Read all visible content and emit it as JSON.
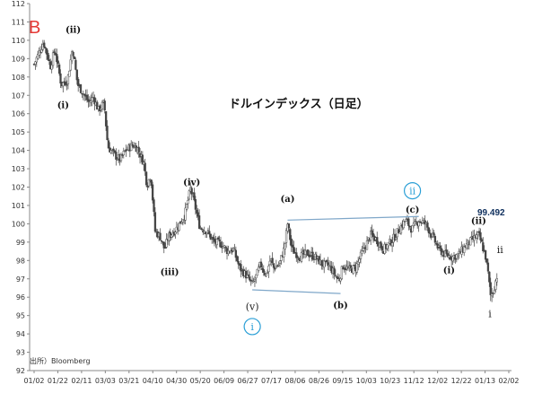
{
  "chart_data": {
    "type": "candlestick",
    "title": "ドルインデックス（日足）",
    "source": "出所）Bloomberg",
    "corner_mark": "B",
    "peak_label": "99.492",
    "ylim": [
      92,
      112
    ],
    "y_ticks": [
      92,
      93,
      94,
      95,
      96,
      97,
      98,
      99,
      100,
      101,
      102,
      103,
      104,
      105,
      106,
      107,
      108,
      109,
      110,
      111,
      112
    ],
    "x_tick_labels": [
      "01/02",
      "01/22",
      "02/11",
      "03/03",
      "03/21",
      "04/10",
      "04/30",
      "05/20",
      "06/09",
      "06/27",
      "07/17",
      "08/06",
      "08/26",
      "09/15",
      "10/03",
      "10/23",
      "11/12",
      "12/02",
      "12/22",
      "01/13",
      "02/02"
    ],
    "grid": false,
    "price_path": [
      {
        "t": 0,
        "v": 108.7
      },
      {
        "t": 1.5,
        "v": 109.9
      },
      {
        "t": 2.6,
        "v": 108.6
      },
      {
        "t": 3.3,
        "v": 109.5
      },
      {
        "t": 4.3,
        "v": 107.6
      },
      {
        "t": 5.3,
        "v": 107.8
      },
      {
        "t": 6.1,
        "v": 109.6
      },
      {
        "t": 6.9,
        "v": 107.6
      },
      {
        "t": 7.8,
        "v": 107.1
      },
      {
        "t": 8.7,
        "v": 106.6
      },
      {
        "t": 9.4,
        "v": 106.9
      },
      {
        "t": 10.2,
        "v": 106.2
      },
      {
        "t": 11.1,
        "v": 106.6
      },
      {
        "t": 11.7,
        "v": 104.2
      },
      {
        "t": 12.9,
        "v": 103.7
      },
      {
        "t": 13.7,
        "v": 103.5
      },
      {
        "t": 14.5,
        "v": 104.0
      },
      {
        "t": 15.7,
        "v": 104.3
      },
      {
        "t": 16.4,
        "v": 104.1
      },
      {
        "t": 17.4,
        "v": 103.3
      },
      {
        "t": 17.9,
        "v": 102.1
      },
      {
        "t": 18.5,
        "v": 102.7
      },
      {
        "t": 19.2,
        "v": 99.6
      },
      {
        "t": 20.0,
        "v": 99.3
      },
      {
        "t": 20.7,
        "v": 98.6
      },
      {
        "t": 21.3,
        "v": 99.3
      },
      {
        "t": 22.5,
        "v": 99.7
      },
      {
        "t": 23.9,
        "v": 100.5
      },
      {
        "t": 24.8,
        "v": 101.9
      },
      {
        "t": 25.3,
        "v": 101.3
      },
      {
        "t": 26.3,
        "v": 99.8
      },
      {
        "t": 27.4,
        "v": 99.6
      },
      {
        "t": 28.5,
        "v": 99.0
      },
      {
        "t": 29.7,
        "v": 98.9
      },
      {
        "t": 30.7,
        "v": 98.5
      },
      {
        "t": 31.6,
        "v": 98.6
      },
      {
        "t": 32.6,
        "v": 97.6
      },
      {
        "t": 33.6,
        "v": 97.2
      },
      {
        "t": 34.6,
        "v": 96.7
      },
      {
        "t": 35.3,
        "v": 97.2
      },
      {
        "t": 35.9,
        "v": 97.8
      },
      {
        "t": 36.8,
        "v": 97.2
      },
      {
        "t": 37.5,
        "v": 98.1
      },
      {
        "t": 38.0,
        "v": 97.6
      },
      {
        "t": 38.9,
        "v": 97.8
      },
      {
        "t": 39.7,
        "v": 98.7
      },
      {
        "t": 40.2,
        "v": 100.0
      },
      {
        "t": 40.9,
        "v": 98.6
      },
      {
        "t": 42.1,
        "v": 98.2
      },
      {
        "t": 43.3,
        "v": 98.4
      },
      {
        "t": 44.5,
        "v": 98.2
      },
      {
        "t": 45.7,
        "v": 97.8
      },
      {
        "t": 46.8,
        "v": 97.7
      },
      {
        "t": 47.6,
        "v": 97.3
      },
      {
        "t": 48.3,
        "v": 96.9
      },
      {
        "t": 49.0,
        "v": 97.7
      },
      {
        "t": 50.0,
        "v": 97.5
      },
      {
        "t": 51.0,
        "v": 97.6
      },
      {
        "t": 52.0,
        "v": 98.4
      },
      {
        "t": 53.4,
        "v": 99.4
      },
      {
        "t": 54.4,
        "v": 99.1
      },
      {
        "t": 55.4,
        "v": 98.6
      },
      {
        "t": 56.8,
        "v": 99.1
      },
      {
        "t": 57.9,
        "v": 99.7
      },
      {
        "t": 58.9,
        "v": 100.2
      },
      {
        "t": 59.9,
        "v": 99.7
      },
      {
        "t": 61.0,
        "v": 100.2
      },
      {
        "t": 62.1,
        "v": 100.0
      },
      {
        "t": 63.2,
        "v": 99.3
      },
      {
        "t": 64.2,
        "v": 98.6
      },
      {
        "t": 65.3,
        "v": 98.3
      },
      {
        "t": 66.3,
        "v": 98.2
      },
      {
        "t": 67.3,
        "v": 98.3
      },
      {
        "t": 68.4,
        "v": 98.8
      },
      {
        "t": 69.4,
        "v": 99.1
      },
      {
        "t": 70.5,
        "v": 99.4
      },
      {
        "t": 71.0,
        "v": 98.9
      },
      {
        "t": 71.6,
        "v": 98.2
      },
      {
        "t": 72.0,
        "v": 97.3
      },
      {
        "t": 72.4,
        "v": 96.1
      },
      {
        "t": 72.8,
        "v": 96.3
      },
      {
        "t": 73.2,
        "v": 96.9
      },
      {
        "t": 73.6,
        "v": 97.4
      }
    ],
    "trendlines": [
      {
        "x1": 34.6,
        "y1": 96.4,
        "x2": 48.6,
        "y2": 96.2
      },
      {
        "x1": 40.2,
        "y1": 100.2,
        "x2": 61.0,
        "y2": 100.4
      }
    ],
    "annotations": [
      {
        "text": "(ii)",
        "x": 6.2,
        "y": 110.4,
        "style": "bold"
      },
      {
        "text": "(i)",
        "x": 4.6,
        "y": 106.3,
        "style": "bold"
      },
      {
        "text": "(iv)",
        "x": 25.0,
        "y": 102.1,
        "style": "bold"
      },
      {
        "text": "(iii)",
        "x": 21.5,
        "y": 97.2,
        "style": "bold"
      },
      {
        "text": "(v)",
        "x": 34.6,
        "y": 95.3,
        "style": "plain"
      },
      {
        "text": "(a)",
        "x": 40.2,
        "y": 101.2,
        "style": "bold"
      },
      {
        "text": "(b)",
        "x": 48.6,
        "y": 95.4,
        "style": "bold"
      },
      {
        "text": "(c)",
        "x": 60.0,
        "y": 100.6,
        "style": "bold"
      },
      {
        "text": "(i)",
        "x": 65.8,
        "y": 97.3,
        "style": "bold"
      },
      {
        "text": "(ii)",
        "x": 70.5,
        "y": 100.0,
        "style": "bold"
      },
      {
        "text": "ii",
        "x": 73.9,
        "y": 98.4,
        "style": "plain"
      },
      {
        "text": "i",
        "x": 72.3,
        "y": 94.9,
        "style": "plain"
      }
    ],
    "circled_labels": [
      {
        "text": "i",
        "x": 34.6,
        "y": 94.4
      },
      {
        "text": "ii",
        "x": 60.0,
        "y": 101.8
      }
    ]
  }
}
